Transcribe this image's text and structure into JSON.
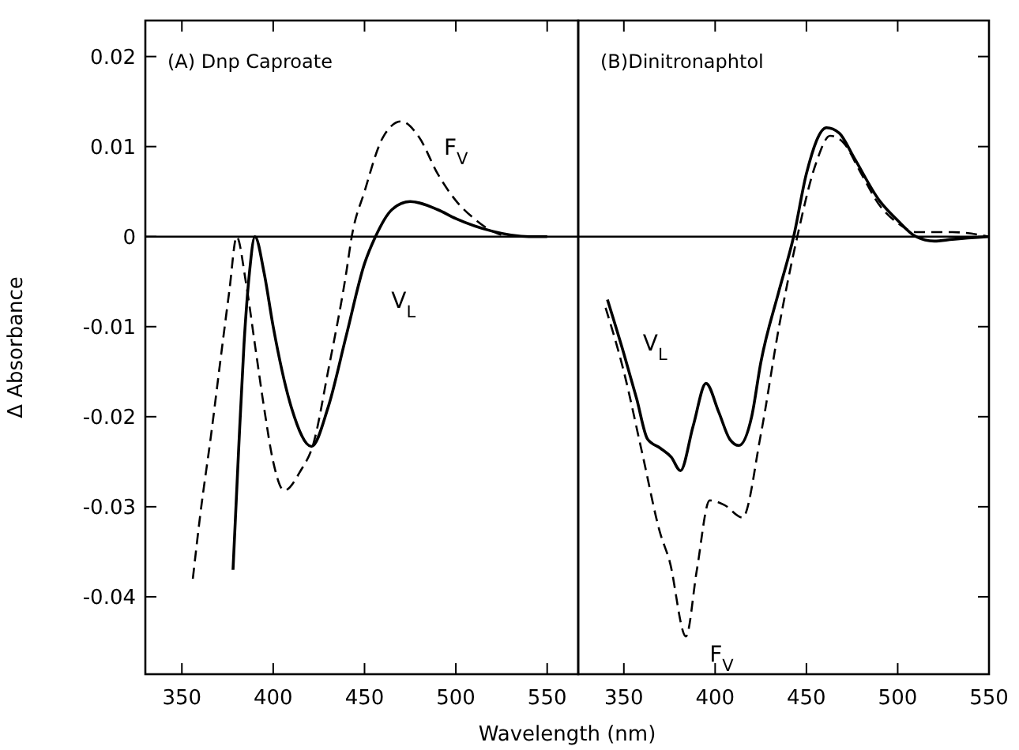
{
  "chart_data": [
    {
      "type": "line",
      "title": "(A) Dnp Caproate",
      "xlabel": "Wavelength (nm)",
      "ylabel": "Δ Absorbance",
      "xlim": [
        330,
        567
      ],
      "xticks": [
        350,
        400,
        450,
        500,
        550
      ],
      "ylim": [
        -0.0486,
        0.024
      ],
      "yticks": [
        -0.04,
        -0.03,
        -0.02,
        -0.01,
        0,
        0.01,
        0.02
      ],
      "grid": false,
      "ref_lines": [
        {
          "axis": "y",
          "value": 0
        }
      ],
      "series": [
        {
          "name": "F$_{V}$",
          "color": "#000000",
          "line_style": "dashed",
          "x": [
            356,
            360,
            366,
            372,
            376,
            380,
            385,
            390,
            395,
            400,
            406,
            415,
            422,
            430,
            440,
            443,
            450,
            460,
            470,
            480,
            490,
            500,
            510,
            520,
            530,
            550
          ],
          "values": [
            -0.038,
            -0.031,
            -0.022,
            -0.0123,
            -0.006,
            0,
            -0.005,
            -0.012,
            -0.019,
            -0.025,
            -0.0282,
            -0.026,
            -0.023,
            -0.015,
            -0.004,
            0,
            0.005,
            0.011,
            0.0128,
            0.011,
            0.007,
            0.004,
            0.002,
            0.0006,
            0,
            0
          ]
        },
        {
          "name": "V$_{L}$",
          "color": "#000000",
          "line_style": "solid",
          "x": [
            378,
            381,
            384,
            387,
            390,
            395,
            400,
            410,
            421,
            430,
            440,
            450,
            456,
            465,
            475,
            490,
            500,
            520,
            540,
            550
          ],
          "values": [
            -0.037,
            -0.024,
            -0.012,
            -0.004,
            0,
            -0.004,
            -0.01,
            -0.019,
            -0.0233,
            -0.019,
            -0.011,
            -0.003,
            0,
            0.003,
            0.0039,
            0.003,
            0.002,
            0.0006,
            0,
            0
          ]
        }
      ]
    },
    {
      "type": "line",
      "title": "(B)Dinitronaphtol",
      "xlim": [
        325,
        550
      ],
      "xticks": [
        350,
        400,
        450,
        500,
        550
      ],
      "ylim": [
        -0.0486,
        0.024
      ],
      "yticks": [
        -0.04,
        -0.03,
        -0.02,
        -0.01,
        0,
        0.01,
        0.02
      ],
      "tick_labels": "x",
      "grid": false,
      "series": [
        {
          "name": "V$_{L}$",
          "color": "#000000",
          "line_style": "solid",
          "x": [
            341,
            350,
            357,
            363,
            370,
            376,
            381,
            388,
            395,
            402,
            408,
            413,
            420,
            425,
            435,
            443,
            450,
            461,
            468,
            476,
            490,
            500,
            510,
            520,
            530,
            550
          ],
          "values": [
            -0.007,
            -0.013,
            -0.018,
            -0.0225,
            -0.0235,
            -0.0245,
            -0.026,
            -0.021,
            -0.0163,
            -0.0195,
            -0.0225,
            -0.0232,
            -0.02,
            -0.014,
            -0.006,
            0,
            0.007,
            0.0121,
            0.0115,
            0.0088,
            0.004,
            0.0018,
            0,
            -0.0005,
            -0.0003,
            0
          ]
        },
        {
          "name": "F$_{V}$",
          "color": "#000000",
          "line_style": "dashed",
          "x": [
            340,
            350,
            360,
            370,
            375,
            384,
            390,
            397,
            405,
            415,
            425,
            435,
            445,
            455,
            463,
            470,
            480,
            490,
            500,
            510,
            530,
            550
          ],
          "values": [
            -0.0079,
            -0.015,
            -0.024,
            -0.033,
            -0.036,
            -0.0444,
            -0.037,
            -0.0293,
            -0.0298,
            -0.0312,
            -0.022,
            -0.01,
            0,
            0.008,
            0.0112,
            0.0105,
            0.007,
            0.0035,
            0.0015,
            0.0005,
            0.0005,
            0
          ]
        }
      ]
    }
  ]
}
